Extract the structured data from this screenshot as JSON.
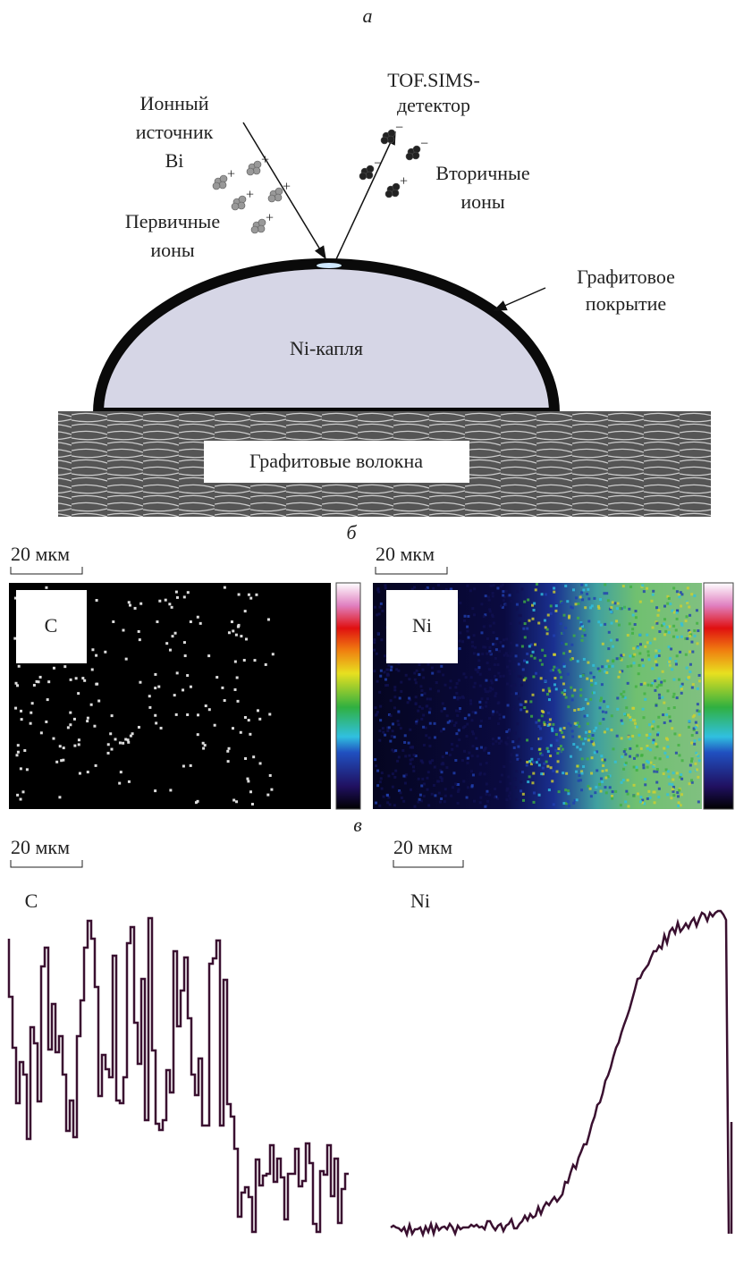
{
  "panel_a": {
    "label": "а",
    "detector": [
      "TOF.SIMS-",
      "детектор"
    ],
    "source": [
      "Ионный",
      "источник",
      "Bi"
    ],
    "primary_ions": [
      "Первичные",
      "ионы"
    ],
    "secondary_ions": [
      "Вторичные",
      "ионы"
    ],
    "coating": [
      "Графитовое",
      "покрытие"
    ],
    "droplet": "Ni-капля",
    "fibers": "Графитовые волокна",
    "primary_charge": "+",
    "secondary_charges": [
      "−",
      "−",
      "−",
      "+"
    ]
  },
  "panel_b": {
    "label": "б",
    "scale_bars": [
      "20 мкм",
      "20 мкм"
    ],
    "maps": [
      "C",
      "Ni"
    ]
  },
  "panel_c": {
    "label": "в",
    "scale_bars": [
      "20 мкм",
      "20 мкм"
    ],
    "profiles": [
      "C",
      "Ni"
    ]
  }
}
